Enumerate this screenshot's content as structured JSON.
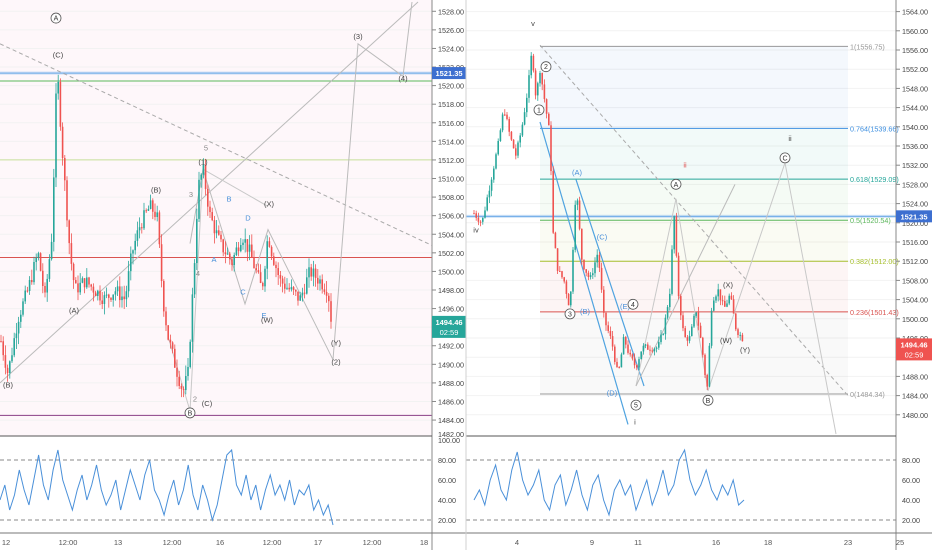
{
  "chart_data": [
    {
      "type": "line",
      "subtype": "candlestick-wave-count",
      "y_axis": {
        "ticks": [
          1484,
          1486,
          1488,
          1490,
          1492,
          1494,
          1496,
          1498,
          1500,
          1502,
          1504,
          1506,
          1508,
          1510,
          1512,
          1514,
          1516,
          1518,
          1520,
          1522,
          1524,
          1526,
          1528
        ],
        "ylim": [
          1482.5,
          1529
        ]
      },
      "x_axis": {
        "ticks": [
          "12",
          "12:00",
          "13",
          "12:00",
          "16",
          "12:00",
          "17",
          "12:00",
          "18"
        ]
      },
      "price_label": "1521.35",
      "current_price": "1494.46",
      "countdown": "02:59",
      "bottom_tick_partial": "1482.00",
      "close_path": [
        [
          0,
          1493
        ],
        [
          8,
          1489
        ],
        [
          18,
          1495
        ],
        [
          28,
          1498
        ],
        [
          38,
          1502
        ],
        [
          45,
          1497
        ],
        [
          52,
          1504
        ],
        [
          57,
          1522
        ],
        [
          63,
          1512
        ],
        [
          70,
          1502
        ],
        [
          75,
          1498
        ],
        [
          85,
          1499
        ],
        [
          95,
          1498
        ],
        [
          105,
          1497
        ],
        [
          115,
          1498
        ],
        [
          125,
          1497
        ],
        [
          132,
          1502
        ],
        [
          140,
          1505
        ],
        [
          150,
          1507
        ],
        [
          157,
          1506
        ],
        [
          163,
          1497
        ],
        [
          168,
          1493
        ],
        [
          175,
          1490
        ],
        [
          183,
          1487
        ],
        [
          188,
          1489
        ],
        [
          195,
          1502
        ],
        [
          198,
          1509
        ],
        [
          203,
          1511
        ],
        [
          210,
          1506
        ],
        [
          220,
          1503
        ],
        [
          232,
          1501
        ],
        [
          242,
          1504
        ],
        [
          250,
          1502
        ],
        [
          256,
          1500
        ],
        [
          262,
          1498
        ],
        [
          268,
          1504
        ],
        [
          272,
          1502
        ],
        [
          280,
          1499
        ],
        [
          290,
          1498
        ],
        [
          300,
          1497
        ],
        [
          310,
          1500
        ],
        [
          320,
          1499
        ],
        [
          328,
          1498
        ],
        [
          333,
          1493
        ]
      ],
      "wave_labels": [
        {
          "text": "(C)",
          "x": 58,
          "y": 1523
        },
        {
          "text": "(A)",
          "x": 74,
          "y": 1495.5
        },
        {
          "text": "(B)",
          "x": 8,
          "y": 1487.5
        },
        {
          "text": "(B)",
          "x": 156,
          "y": 1508.5
        },
        {
          "text": "(1)",
          "x": 203,
          "y": 1511.5
        },
        {
          "text": "5",
          "x": 206,
          "y": 1513
        },
        {
          "text": "3",
          "x": 191,
          "y": 1508
        },
        {
          "text": "B",
          "x": 229,
          "y": 1507.5
        },
        {
          "text": "D",
          "x": 248,
          "y": 1505.5
        },
        {
          "text": "A",
          "x": 214,
          "y": 1501
        },
        {
          "text": "4",
          "x": 198,
          "y": 1499.5
        },
        {
          "text": "C",
          "x": 243,
          "y": 1497.5
        },
        {
          "text": "(X)",
          "x": 269,
          "y": 1507
        },
        {
          "text": "E",
          "x": 264,
          "y": 1495
        },
        {
          "text": "(W)",
          "x": 267,
          "y": 1494.5
        },
        {
          "text": "(3)",
          "x": 358,
          "y": 1525
        },
        {
          "text": "(4)",
          "x": 403,
          "y": 1520.5
        },
        {
          "text": "(Y)",
          "x": 336,
          "y": 1492
        },
        {
          "text": "(2)",
          "x": 336,
          "y": 1490
        },
        {
          "text": "2",
          "x": 195,
          "y": 1486
        },
        {
          "text": "(C)",
          "x": 207,
          "y": 1485.5
        }
      ],
      "circled_labels": [
        {
          "text": "A",
          "x": 56,
          "y": 1527
        },
        {
          "text": "B",
          "x": 190,
          "y": 1484.5
        }
      ],
      "horizontal_lines": [
        {
          "price": 1512,
          "color": "#c8e09a"
        },
        {
          "price": 1520.5,
          "color": "#5cb85c"
        },
        {
          "price": 1521.35,
          "color": "#3d8fe0"
        },
        {
          "price": 1501.5,
          "color": "#d9534f"
        },
        {
          "price": 1484.5,
          "color": "#8a3f86"
        }
      ],
      "indicator": {
        "ticks": [
          20,
          40,
          60,
          80,
          100
        ],
        "levels": [
          20,
          80
        ],
        "values": [
          40,
          55,
          30,
          45,
          70,
          50,
          35,
          60,
          85,
          55,
          40,
          70,
          90,
          60,
          45,
          30,
          50,
          65,
          40,
          55,
          75,
          50,
          35,
          45,
          60,
          30,
          50,
          70,
          55,
          40,
          65,
          80,
          50,
          40,
          25,
          45,
          60,
          35,
          50,
          75,
          45,
          30,
          55,
          40,
          20,
          35,
          60,
          85,
          90,
          55,
          45,
          65,
          40,
          55,
          30,
          50,
          65,
          45,
          55,
          40,
          60,
          35,
          50,
          45,
          55,
          30,
          40,
          25,
          35,
          15
        ]
      }
    },
    {
      "type": "line",
      "subtype": "candlestick-wave-count",
      "y_axis": {
        "ticks": [
          1480,
          1484,
          1488,
          1492,
          1496,
          1500,
          1504,
          1508,
          1512,
          1516,
          1520,
          1524,
          1528,
          1532,
          1536,
          1540,
          1544,
          1548,
          1552,
          1556,
          1560,
          1564
        ],
        "ylim": [
          1476,
          1566
        ]
      },
      "x_axis": {
        "ticks": [
          "4",
          "9",
          "11",
          "16",
          "18",
          "23",
          "25"
        ]
      },
      "price_label": "1521.35",
      "current_price": "1494.46",
      "countdown": "02:59",
      "fib_levels": [
        {
          "label": "1(1556.75)",
          "price": 1556.75,
          "color": "#999999"
        },
        {
          "label": "0.764(1539.66)",
          "price": 1539.66,
          "color": "#3d8fe0"
        },
        {
          "label": "0.618(1529.09)",
          "price": 1529.09,
          "color": "#26a69a"
        },
        {
          "label": "0.5(1520.54)",
          "price": 1520.54,
          "color": "#5cb85c"
        },
        {
          "label": "0.382(1512.00)",
          "price": 1512.0,
          "color": "#a8c030"
        },
        {
          "label": "0.236(1501.43)",
          "price": 1501.43,
          "color": "#d9534f"
        },
        {
          "label": "0(1484.34)",
          "price": 1484.34,
          "color": "#999999"
        }
      ],
      "close_path": [
        [
          474,
          1522
        ],
        [
          482,
          1520
        ],
        [
          490,
          1528
        ],
        [
          498,
          1536
        ],
        [
          504,
          1544
        ],
        [
          510,
          1538
        ],
        [
          516,
          1534
        ],
        [
          522,
          1540
        ],
        [
          528,
          1548
        ],
        [
          532,
          1556
        ],
        [
          536,
          1546
        ],
        [
          540,
          1552
        ],
        [
          545,
          1545
        ],
        [
          550,
          1538
        ],
        [
          553,
          1518
        ],
        [
          558,
          1510
        ],
        [
          564,
          1508
        ],
        [
          570,
          1502
        ],
        [
          576,
          1528
        ],
        [
          582,
          1512
        ],
        [
          590,
          1508
        ],
        [
          598,
          1514
        ],
        [
          604,
          1500
        ],
        [
          612,
          1495
        ],
        [
          618,
          1488
        ],
        [
          624,
          1496
        ],
        [
          630,
          1492
        ],
        [
          636,
          1490
        ],
        [
          642,
          1494
        ],
        [
          650,
          1494
        ],
        [
          658,
          1494
        ],
        [
          664,
          1498
        ],
        [
          670,
          1506
        ],
        [
          674,
          1522
        ],
        [
          678,
          1506
        ],
        [
          684,
          1496
        ],
        [
          690,
          1496
        ],
        [
          696,
          1502
        ],
        [
          702,
          1494
        ],
        [
          707,
          1485
        ],
        [
          712,
          1504
        ],
        [
          718,
          1506
        ],
        [
          724,
          1502
        ],
        [
          730,
          1505
        ],
        [
          736,
          1498
        ],
        [
          742,
          1496
        ]
      ],
      "wave_labels": [
        {
          "text": "v",
          "x": 533,
          "y": 1561
        },
        {
          "text": "iv",
          "x": 476,
          "y": 1518
        },
        {
          "text": "(A)",
          "x": 577,
          "y": 1530
        },
        {
          "text": "(C)",
          "x": 602,
          "y": 1516.5
        },
        {
          "text": "(B)",
          "x": 585,
          "y": 1501
        },
        {
          "text": "(D)",
          "x": 612,
          "y": 1484
        },
        {
          "text": "(E)",
          "x": 625,
          "y": 1502
        },
        {
          "text": "ii",
          "x": 685,
          "y": 1531.5
        },
        {
          "text": "ii",
          "x": 790,
          "y": 1537
        },
        {
          "text": "(X)",
          "x": 728,
          "y": 1506.5
        },
        {
          "text": "(W)",
          "x": 726,
          "y": 1495
        },
        {
          "text": "(Y)",
          "x": 745,
          "y": 1493
        },
        {
          "text": "i",
          "x": 635,
          "y": 1478
        }
      ],
      "circled_labels": [
        {
          "text": "2",
          "x": 546,
          "y": 1552
        },
        {
          "text": "1",
          "x": 539,
          "y": 1543
        },
        {
          "text": "3",
          "x": 570,
          "y": 1500.5
        },
        {
          "text": "4",
          "x": 633,
          "y": 1502.5
        },
        {
          "text": "5",
          "x": 636,
          "y": 1481.5
        },
        {
          "text": "A",
          "x": 676,
          "y": 1527.5
        },
        {
          "text": "B",
          "x": 708,
          "y": 1482.5
        },
        {
          "text": "C",
          "x": 785,
          "y": 1533
        }
      ],
      "indicator": {
        "ticks": [
          20,
          40,
          60,
          80
        ],
        "levels": [
          20,
          80
        ],
        "values": [
          40,
          50,
          35,
          60,
          75,
          50,
          40,
          70,
          88,
          60,
          45,
          55,
          70,
          40,
          30,
          55,
          65,
          35,
          50,
          70,
          45,
          30,
          55,
          65,
          40,
          25,
          50,
          60,
          45,
          55,
          30,
          45,
          60,
          35,
          50,
          70,
          45,
          55,
          80,
          90,
          60,
          45,
          55,
          70,
          50,
          40,
          55,
          45,
          60,
          35,
          40
        ]
      }
    }
  ]
}
